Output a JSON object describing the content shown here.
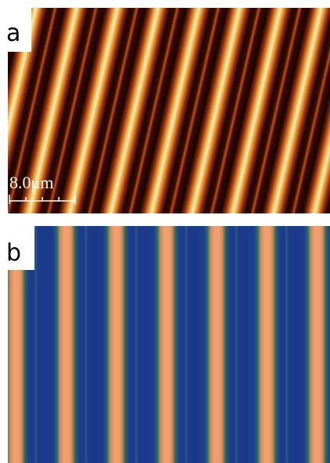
{
  "panels": [
    {
      "label": "a",
      "scale_bar": "8.0μm"
    },
    {
      "label": "b"
    }
  ]
}
